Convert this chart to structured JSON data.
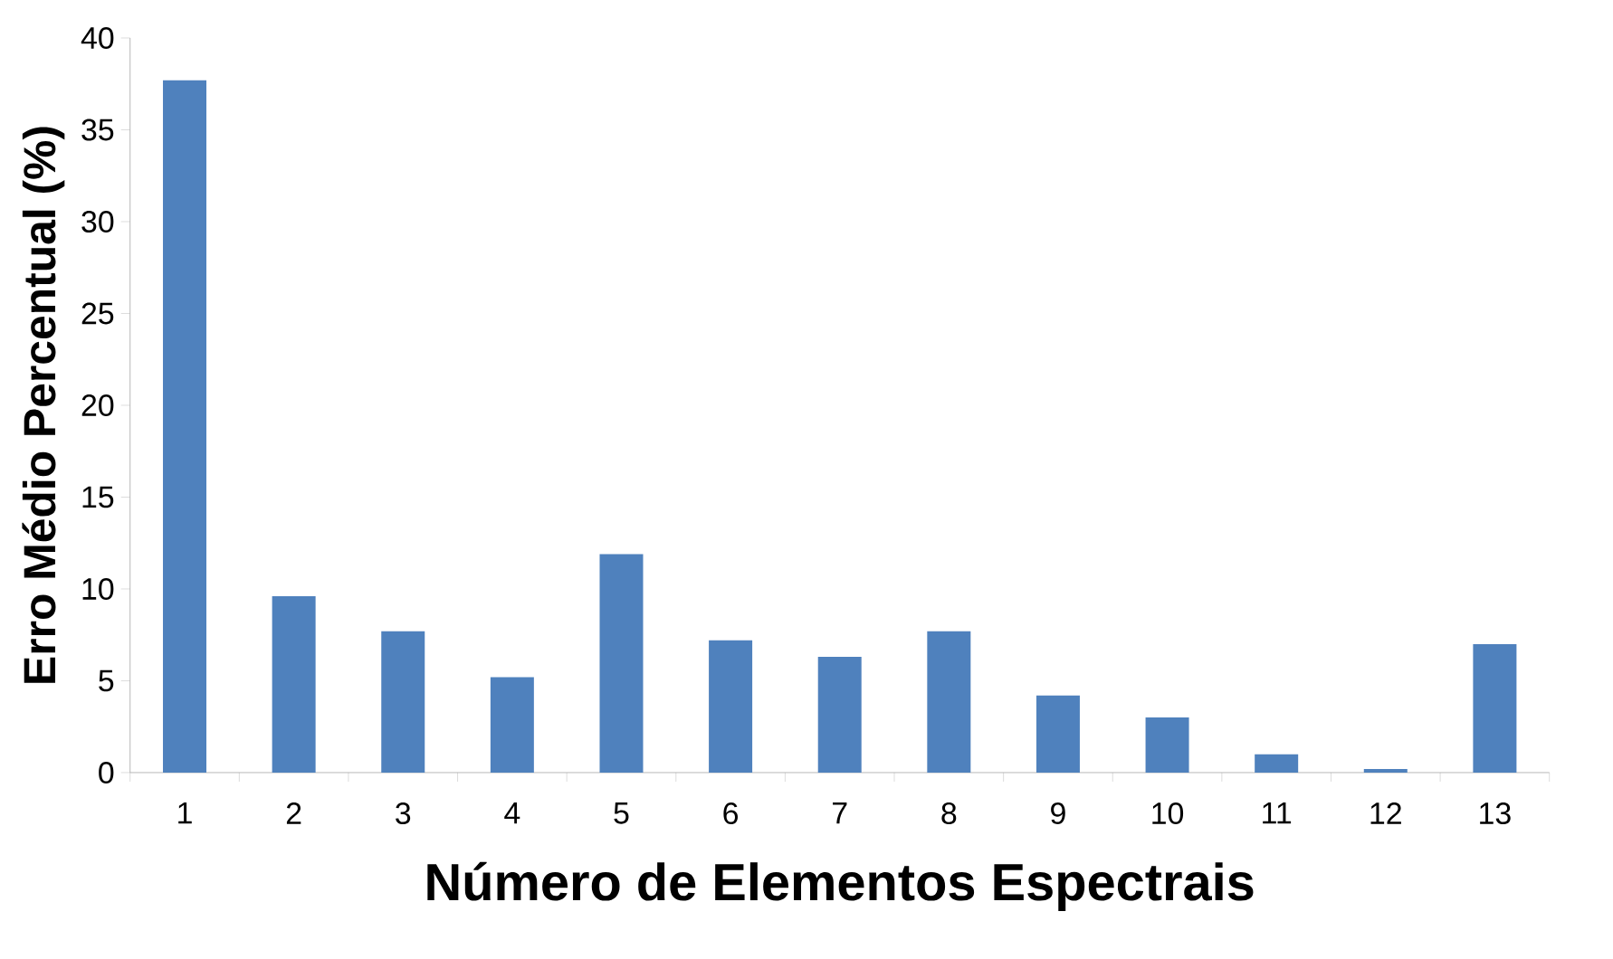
{
  "chart_data": {
    "type": "bar",
    "xlabel": "Número de Elementos Espectrais",
    "ylabel": "Erro Médio Percentual (%)",
    "categories": [
      "1",
      "2",
      "3",
      "4",
      "5",
      "6",
      "7",
      "8",
      "9",
      "10",
      "11",
      "12",
      "13"
    ],
    "values": [
      37.7,
      9.6,
      7.7,
      5.2,
      11.9,
      7.2,
      6.3,
      7.7,
      4.2,
      3.0,
      1.0,
      0.2,
      7.0
    ],
    "color": "#4f81bd",
    "ylim": [
      0,
      40
    ],
    "yticks": [
      0,
      5,
      10,
      15,
      20,
      25,
      30,
      35,
      40
    ]
  }
}
